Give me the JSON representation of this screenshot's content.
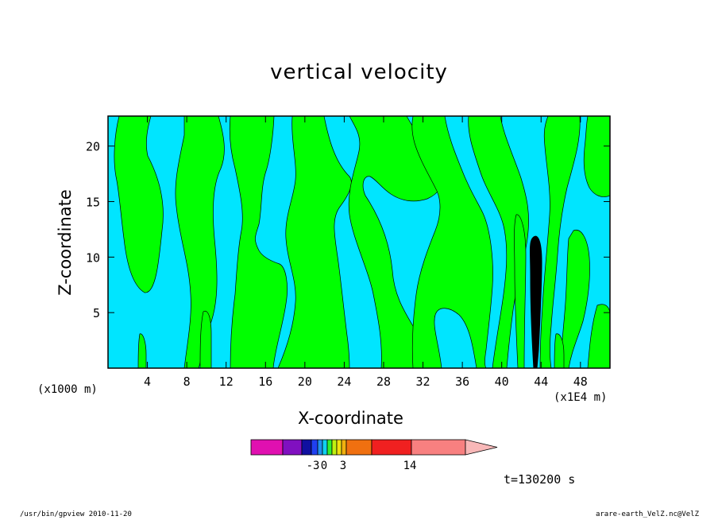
{
  "chart_data": {
    "type": "heatmap",
    "title": "vertical velocity",
    "xlabel": "X-coordinate",
    "ylabel": "Z-coordinate",
    "x_unit_left": "(x1000 m)",
    "x_unit_right": "(x1E4 m)",
    "x_ticks": [
      4,
      8,
      12,
      16,
      20,
      24,
      28,
      32,
      36,
      40,
      44,
      48
    ],
    "y_ticks": [
      5,
      10,
      15,
      20
    ],
    "xlim": [
      0,
      51
    ],
    "ylim": [
      0,
      22.7
    ],
    "time_label": "t=130200 s",
    "colorbar": {
      "tick_labels": [
        "-3",
        "0",
        "3",
        "14"
      ],
      "colors": [
        "#e010b0",
        "#8010c0",
        "#1010a0",
        "#2040f0",
        "#2090f0",
        "#10d0f0",
        "#30f030",
        "#c0f010",
        "#f0e010",
        "#f0b010",
        "#f07010",
        "#f02020",
        "#f88080",
        "#f8b8b8"
      ]
    },
    "fill_colors": {
      "negative": "#00e5ff",
      "positive": "#00ff00",
      "strong": "#000000"
    }
  },
  "footer": {
    "left": "/usr/bin/gpview   2010-11-20",
    "right": "arare-earth_VelZ.nc@VelZ"
  }
}
